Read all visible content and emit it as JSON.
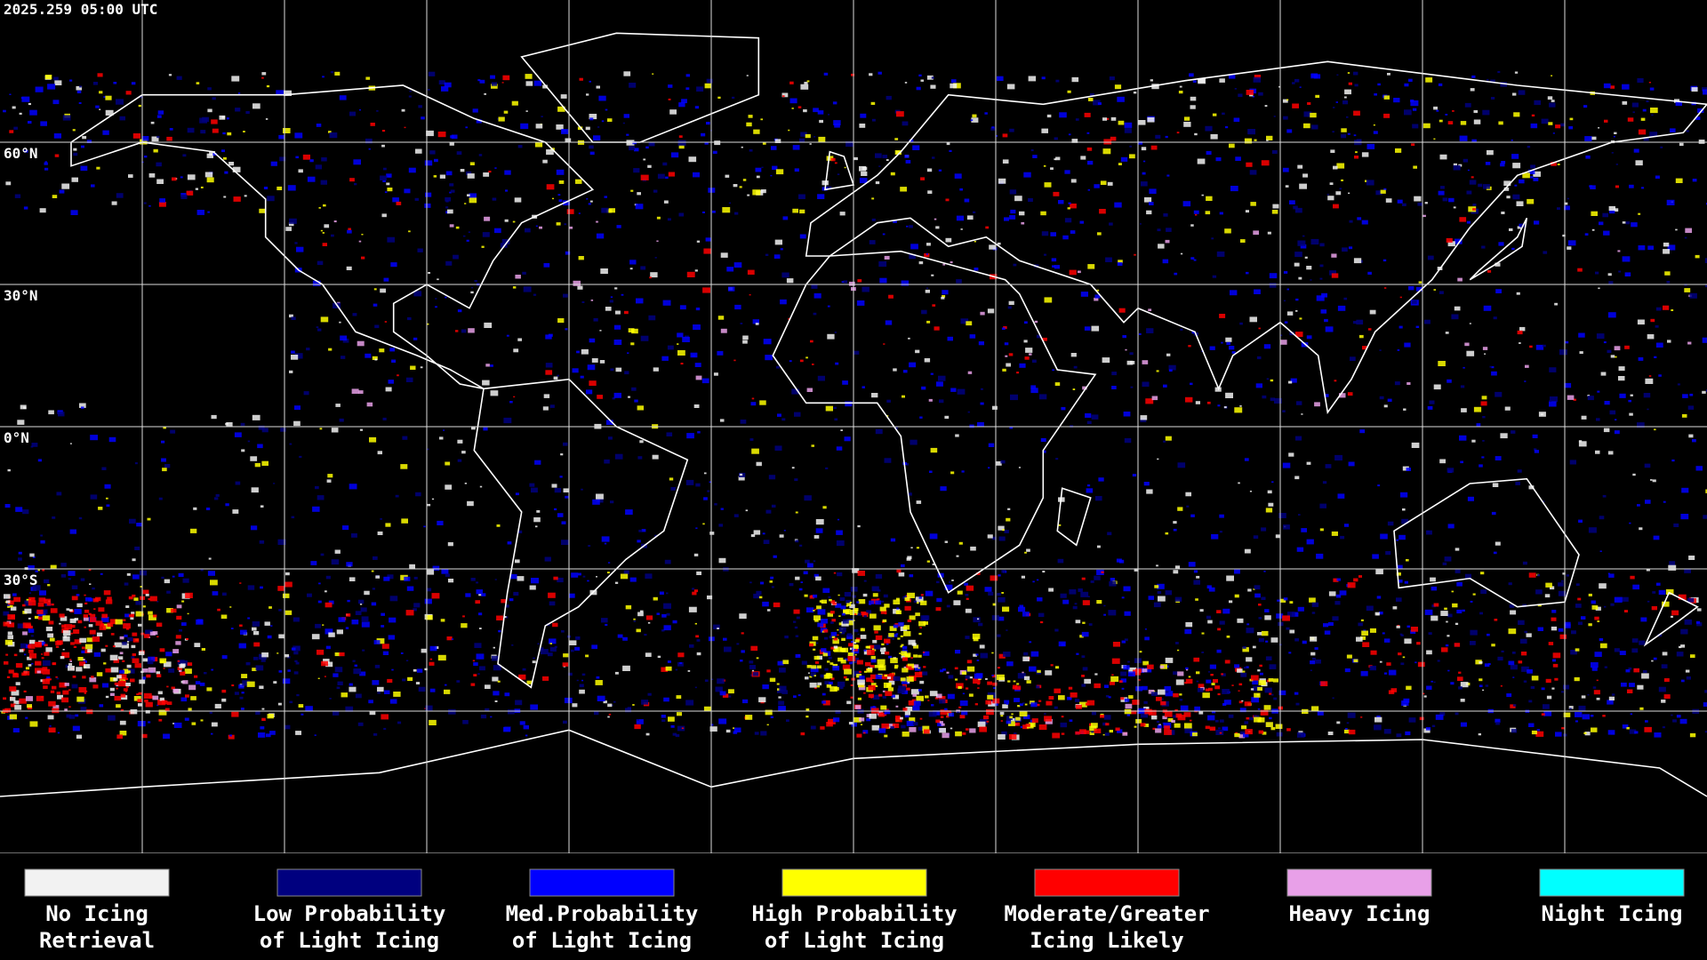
{
  "header": {
    "timestamp": "2025.259 05:00 UTC"
  },
  "latitude_labels": [
    "60°N",
    "30°N",
    "0°N",
    "30°S"
  ],
  "legend": [
    {
      "lines": [
        "No Icing",
        "Retrieval"
      ],
      "color": "#f2f2f2"
    },
    {
      "lines": [
        "Low Probability",
        "of Light Icing"
      ],
      "color": "#00007f"
    },
    {
      "lines": [
        "Med.Probability",
        "of Light Icing"
      ],
      "color": "#0000ff"
    },
    {
      "lines": [
        "High Probability",
        "of Light Icing"
      ],
      "color": "#ffff00"
    },
    {
      "lines": [
        "Moderate/Greater",
        "Icing Likely"
      ],
      "color": "#ff0000"
    },
    {
      "lines": [
        "Heavy Icing"
      ],
      "color": "#e8a0e8"
    },
    {
      "lines": [
        "Night Icing"
      ],
      "color": "#00ffff"
    }
  ]
}
